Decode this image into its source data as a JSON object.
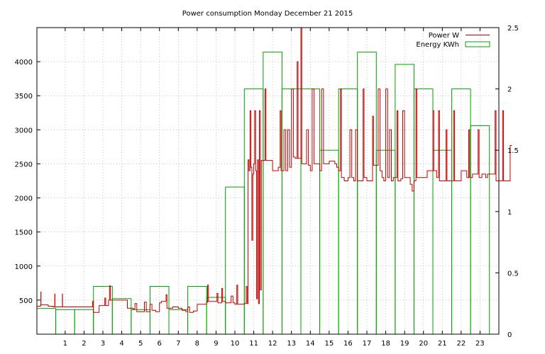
{
  "chart_data": {
    "type": "bar+line",
    "title": "Power consumption Monday December 21 2015",
    "y_left": {
      "ylim": [
        0,
        4500
      ],
      "ticks": [
        500,
        1000,
        1500,
        2000,
        2500,
        3000,
        3500,
        4000
      ]
    },
    "y_right": {
      "ylim": [
        0,
        2.5
      ],
      "ticks": [
        0,
        0.5,
        1,
        1.5,
        2,
        2.5
      ]
    },
    "x": {
      "xlim": [
        -0.5,
        24
      ],
      "ticks": [
        1,
        2,
        3,
        4,
        5,
        6,
        7,
        8,
        9,
        10,
        11,
        12,
        13,
        14,
        15,
        16,
        17,
        18,
        19,
        20,
        21,
        22,
        23
      ]
    },
    "grid": true,
    "legend_position": "top-right",
    "series": [
      {
        "name": "Power W",
        "color": "#c00000",
        "kind": "line",
        "points": [
          [
            -0.5,
            410
          ],
          [
            -0.3,
            430
          ],
          [
            -0.29,
            620
          ],
          [
            -0.28,
            430
          ],
          [
            0,
            430
          ],
          [
            0.1,
            410
          ],
          [
            0.35,
            400
          ],
          [
            0.45,
            590
          ],
          [
            0.46,
            400
          ],
          [
            0.8,
            400
          ],
          [
            0.85,
            590
          ],
          [
            0.86,
            400
          ],
          [
            1.5,
            400
          ],
          [
            2.0,
            400
          ],
          [
            2.4,
            400
          ],
          [
            2.45,
            480
          ],
          [
            2.5,
            320
          ],
          [
            2.7,
            320
          ],
          [
            2.8,
            420
          ],
          [
            3.0,
            420
          ],
          [
            3.1,
            530
          ],
          [
            3.15,
            420
          ],
          [
            3.3,
            500
          ],
          [
            3.35,
            710
          ],
          [
            3.4,
            500
          ],
          [
            4.0,
            500
          ],
          [
            4.2,
            500
          ],
          [
            4.3,
            380
          ],
          [
            4.6,
            370
          ],
          [
            4.7,
            450
          ],
          [
            4.8,
            330
          ],
          [
            5.1,
            330
          ],
          [
            5.2,
            470
          ],
          [
            5.3,
            330
          ],
          [
            5.5,
            440
          ],
          [
            5.6,
            350
          ],
          [
            5.8,
            330
          ],
          [
            6.0,
            460
          ],
          [
            6.1,
            480
          ],
          [
            6.3,
            480
          ],
          [
            6.35,
            580
          ],
          [
            6.4,
            380
          ],
          [
            6.7,
            400
          ],
          [
            6.8,
            400
          ],
          [
            7.0,
            380
          ],
          [
            7.2,
            350
          ],
          [
            7.4,
            330
          ],
          [
            7.5,
            400
          ],
          [
            7.6,
            320
          ],
          [
            7.8,
            340
          ],
          [
            8.0,
            440
          ],
          [
            8.3,
            440
          ],
          [
            8.5,
            470
          ],
          [
            8.55,
            720
          ],
          [
            8.6,
            480
          ],
          [
            9.0,
            480
          ],
          [
            9.05,
            600
          ],
          [
            9.1,
            460
          ],
          [
            9.2,
            460
          ],
          [
            9.3,
            670
          ],
          [
            9.35,
            480
          ],
          [
            9.5,
            460
          ],
          [
            9.7,
            460
          ],
          [
            9.8,
            560
          ],
          [
            9.9,
            460
          ],
          [
            10.0,
            440
          ],
          [
            10.1,
            720
          ],
          [
            10.15,
            440
          ],
          [
            10.5,
            450
          ],
          [
            10.6,
            700
          ],
          [
            10.65,
            450
          ],
          [
            10.7,
            2560
          ],
          [
            10.75,
            2400
          ],
          [
            10.8,
            3280
          ],
          [
            10.85,
            2450
          ],
          [
            10.9,
            1380
          ],
          [
            10.95,
            2350
          ],
          [
            11.0,
            2500
          ],
          [
            11.05,
            3280
          ],
          [
            11.1,
            2400
          ],
          [
            11.15,
            520
          ],
          [
            11.2,
            2560
          ],
          [
            11.25,
            450
          ],
          [
            11.3,
            3280
          ],
          [
            11.35,
            650
          ],
          [
            11.4,
            2550
          ],
          [
            11.5,
            2550
          ],
          [
            11.6,
            3600
          ],
          [
            11.65,
            2550
          ],
          [
            12.0,
            2400
          ],
          [
            12.3,
            2450
          ],
          [
            12.4,
            3280
          ],
          [
            12.45,
            2400
          ],
          [
            12.6,
            3000
          ],
          [
            12.7,
            2400
          ],
          [
            12.8,
            3000
          ],
          [
            12.9,
            2450
          ],
          [
            13.0,
            3600
          ],
          [
            13.1,
            2600
          ],
          [
            13.2,
            2580
          ],
          [
            13.3,
            4000
          ],
          [
            13.35,
            2580
          ],
          [
            13.5,
            4500
          ],
          [
            13.55,
            2500
          ],
          [
            13.7,
            2500
          ],
          [
            13.8,
            3000
          ],
          [
            13.9,
            2480
          ],
          [
            14.0,
            2400
          ],
          [
            14.1,
            3600
          ],
          [
            14.2,
            2500
          ],
          [
            14.5,
            2400
          ],
          [
            14.6,
            3600
          ],
          [
            14.7,
            2500
          ],
          [
            15.0,
            2540
          ],
          [
            15.3,
            2500
          ],
          [
            15.4,
            2450
          ],
          [
            15.5,
            2400
          ],
          [
            15.6,
            3600
          ],
          [
            15.65,
            2300
          ],
          [
            15.8,
            2250
          ],
          [
            16.0,
            2300
          ],
          [
            16.1,
            3000
          ],
          [
            16.2,
            2300
          ],
          [
            16.3,
            2250
          ],
          [
            16.4,
            3000
          ],
          [
            16.5,
            2250
          ],
          [
            16.7,
            2250
          ],
          [
            16.8,
            3600
          ],
          [
            16.85,
            2300
          ],
          [
            17.0,
            2250
          ],
          [
            17.2,
            2250
          ],
          [
            17.3,
            3200
          ],
          [
            17.35,
            2480
          ],
          [
            17.5,
            2480
          ],
          [
            17.6,
            3600
          ],
          [
            17.7,
            2400
          ],
          [
            17.8,
            2300
          ],
          [
            17.9,
            2250
          ],
          [
            18.0,
            3600
          ],
          [
            18.1,
            2300
          ],
          [
            18.2,
            3000
          ],
          [
            18.3,
            2250
          ],
          [
            18.4,
            2300
          ],
          [
            18.5,
            2300
          ],
          [
            18.6,
            3280
          ],
          [
            18.65,
            2250
          ],
          [
            18.8,
            2280
          ],
          [
            18.9,
            3280
          ],
          [
            19.0,
            2300
          ],
          [
            19.2,
            2300
          ],
          [
            19.3,
            2200
          ],
          [
            19.4,
            2100
          ],
          [
            19.5,
            2250
          ],
          [
            19.6,
            3600
          ],
          [
            19.65,
            2300
          ],
          [
            19.8,
            2300
          ],
          [
            20.0,
            2300
          ],
          [
            20.2,
            2400
          ],
          [
            20.4,
            2400
          ],
          [
            20.5,
            3280
          ],
          [
            20.55,
            2400
          ],
          [
            20.7,
            2300
          ],
          [
            20.8,
            3280
          ],
          [
            20.85,
            2250
          ],
          [
            21.0,
            2250
          ],
          [
            21.2,
            3000
          ],
          [
            21.25,
            2250
          ],
          [
            21.5,
            2250
          ],
          [
            21.6,
            3280
          ],
          [
            21.65,
            2250
          ],
          [
            21.8,
            2250
          ],
          [
            22.0,
            2400
          ],
          [
            22.2,
            2400
          ],
          [
            22.3,
            2300
          ],
          [
            22.4,
            3000
          ],
          [
            22.45,
            2300
          ],
          [
            22.6,
            2350
          ],
          [
            22.8,
            2350
          ],
          [
            22.9,
            3000
          ],
          [
            22.95,
            2300
          ],
          [
            23.1,
            2350
          ],
          [
            23.3,
            2300
          ],
          [
            23.4,
            2350
          ],
          [
            23.6,
            2350
          ],
          [
            23.8,
            3280
          ],
          [
            23.85,
            2250
          ],
          [
            24.0,
            2250
          ],
          [
            24.2,
            3280
          ],
          [
            24.25,
            2250
          ],
          [
            24.5,
            2250
          ],
          [
            24.6,
            2770
          ],
          [
            24.7,
            2770
          ]
        ]
      },
      {
        "name": "Energy KWh",
        "color": "#00a000",
        "kind": "step-bar",
        "hours": [
          0,
          1,
          2,
          3,
          4,
          5,
          6,
          7,
          8,
          9,
          10,
          11,
          12,
          13,
          14,
          15,
          16,
          17,
          18,
          19,
          20,
          21,
          22,
          23
        ],
        "values": [
          0.21,
          0.2,
          0.2,
          0.39,
          0.29,
          0.2,
          0.39,
          0.2,
          0.39,
          0.3,
          1.2,
          2.0,
          2.3,
          2.0,
          2.0,
          1.5,
          2.0,
          2.3,
          1.5,
          2.2,
          2.0,
          1.5,
          2.0,
          1.7
        ]
      }
    ]
  }
}
